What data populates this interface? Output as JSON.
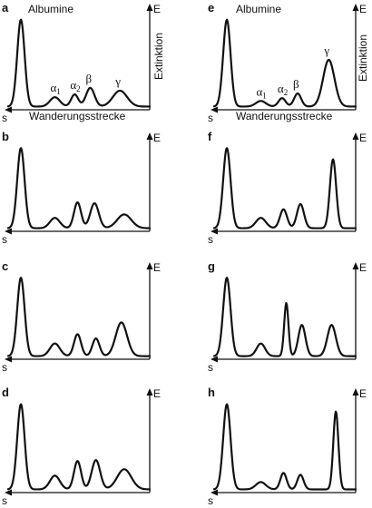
{
  "axis_labels": {
    "x": "Wanderungsstrecke",
    "y": "Extinktion",
    "x_short": "s",
    "y_short": "E",
    "albumin": "Albumine",
    "alpha": "α",
    "beta": "β",
    "gamma": "γ"
  },
  "chart_data": [
    {
      "type": "line",
      "panel": "a",
      "xlabel": "Wanderungsstrecke",
      "ylabel": "Extinktion",
      "peaks": [
        {
          "id": "albumin",
          "label": "Albumine",
          "x": 0.09,
          "h": 0.93,
          "w": 0.026
        },
        {
          "id": "alpha1",
          "label": "α1",
          "x": 0.33,
          "h": 0.1,
          "w": 0.035
        },
        {
          "id": "alpha2",
          "label": "α2",
          "x": 0.47,
          "h": 0.13,
          "w": 0.025
        },
        {
          "id": "beta",
          "label": "β",
          "x": 0.58,
          "h": 0.2,
          "w": 0.03
        },
        {
          "id": "gamma",
          "label": "γ",
          "x": 0.79,
          "h": 0.17,
          "w": 0.05
        }
      ]
    },
    {
      "type": "line",
      "panel": "b",
      "peaks": [
        {
          "id": "albumin",
          "x": 0.09,
          "h": 0.93,
          "w": 0.026
        },
        {
          "id": "alpha1",
          "x": 0.33,
          "h": 0.12,
          "w": 0.035
        },
        {
          "id": "alpha2",
          "x": 0.49,
          "h": 0.3,
          "w": 0.025
        },
        {
          "id": "beta",
          "x": 0.61,
          "h": 0.29,
          "w": 0.03
        },
        {
          "id": "gamma",
          "x": 0.82,
          "h": 0.16,
          "w": 0.05
        }
      ]
    },
    {
      "type": "line",
      "panel": "c",
      "peaks": [
        {
          "id": "albumin",
          "x": 0.09,
          "h": 0.93,
          "w": 0.026
        },
        {
          "id": "alpha1",
          "x": 0.33,
          "h": 0.15,
          "w": 0.035
        },
        {
          "id": "alpha2",
          "x": 0.49,
          "h": 0.26,
          "w": 0.025
        },
        {
          "id": "beta",
          "x": 0.62,
          "h": 0.21,
          "w": 0.025
        },
        {
          "id": "gamma",
          "x": 0.8,
          "h": 0.4,
          "w": 0.04
        }
      ]
    },
    {
      "type": "line",
      "panel": "d",
      "peaks": [
        {
          "id": "albumin",
          "x": 0.09,
          "h": 0.93,
          "w": 0.026
        },
        {
          "id": "alpha1",
          "x": 0.33,
          "h": 0.15,
          "w": 0.035
        },
        {
          "id": "alpha2",
          "x": 0.49,
          "h": 0.31,
          "w": 0.025
        },
        {
          "id": "beta",
          "x": 0.62,
          "h": 0.32,
          "w": 0.03
        },
        {
          "id": "gamma",
          "x": 0.82,
          "h": 0.22,
          "w": 0.05
        }
      ]
    },
    {
      "type": "line",
      "panel": "e",
      "xlabel": "Wanderungsstrecke",
      "ylabel": "Extinktion",
      "peaks": [
        {
          "id": "albumin",
          "label": "Albumine",
          "x": 0.09,
          "h": 0.93,
          "w": 0.026
        },
        {
          "id": "alpha1",
          "label": "α1",
          "x": 0.33,
          "h": 0.06,
          "w": 0.035
        },
        {
          "id": "alpha2",
          "label": "α2",
          "x": 0.48,
          "h": 0.09,
          "w": 0.025
        },
        {
          "id": "beta",
          "label": "β",
          "x": 0.59,
          "h": 0.14,
          "w": 0.025
        },
        {
          "id": "gamma",
          "label": "γ",
          "x": 0.81,
          "h": 0.5,
          "w": 0.04
        }
      ]
    },
    {
      "type": "line",
      "panel": "f",
      "peaks": [
        {
          "id": "albumin",
          "x": 0.09,
          "h": 0.93,
          "w": 0.026
        },
        {
          "id": "alpha1",
          "x": 0.33,
          "h": 0.12,
          "w": 0.035
        },
        {
          "id": "alpha2",
          "x": 0.49,
          "h": 0.22,
          "w": 0.025
        },
        {
          "id": "beta",
          "x": 0.61,
          "h": 0.28,
          "w": 0.025
        },
        {
          "id": "gamma",
          "x": 0.84,
          "h": 0.8,
          "w": 0.022
        }
      ]
    },
    {
      "type": "line",
      "panel": "g",
      "peaks": [
        {
          "id": "albumin",
          "x": 0.09,
          "h": 0.93,
          "w": 0.026
        },
        {
          "id": "alpha1",
          "x": 0.33,
          "h": 0.15,
          "w": 0.03
        },
        {
          "id": "alpha2",
          "x": 0.51,
          "h": 0.63,
          "w": 0.015
        },
        {
          "id": "beta",
          "x": 0.62,
          "h": 0.37,
          "w": 0.025
        },
        {
          "id": "gamma",
          "x": 0.83,
          "h": 0.37,
          "w": 0.03
        }
      ]
    },
    {
      "type": "line",
      "panel": "h",
      "peaks": [
        {
          "id": "albumin",
          "x": 0.09,
          "h": 0.93,
          "w": 0.026
        },
        {
          "id": "alpha1",
          "x": 0.33,
          "h": 0.08,
          "w": 0.035
        },
        {
          "id": "alpha2",
          "x": 0.49,
          "h": 0.18,
          "w": 0.022
        },
        {
          "id": "beta",
          "x": 0.61,
          "h": 0.16,
          "w": 0.022
        },
        {
          "id": "gamma",
          "x": 0.86,
          "h": 0.85,
          "w": 0.018
        }
      ]
    }
  ]
}
